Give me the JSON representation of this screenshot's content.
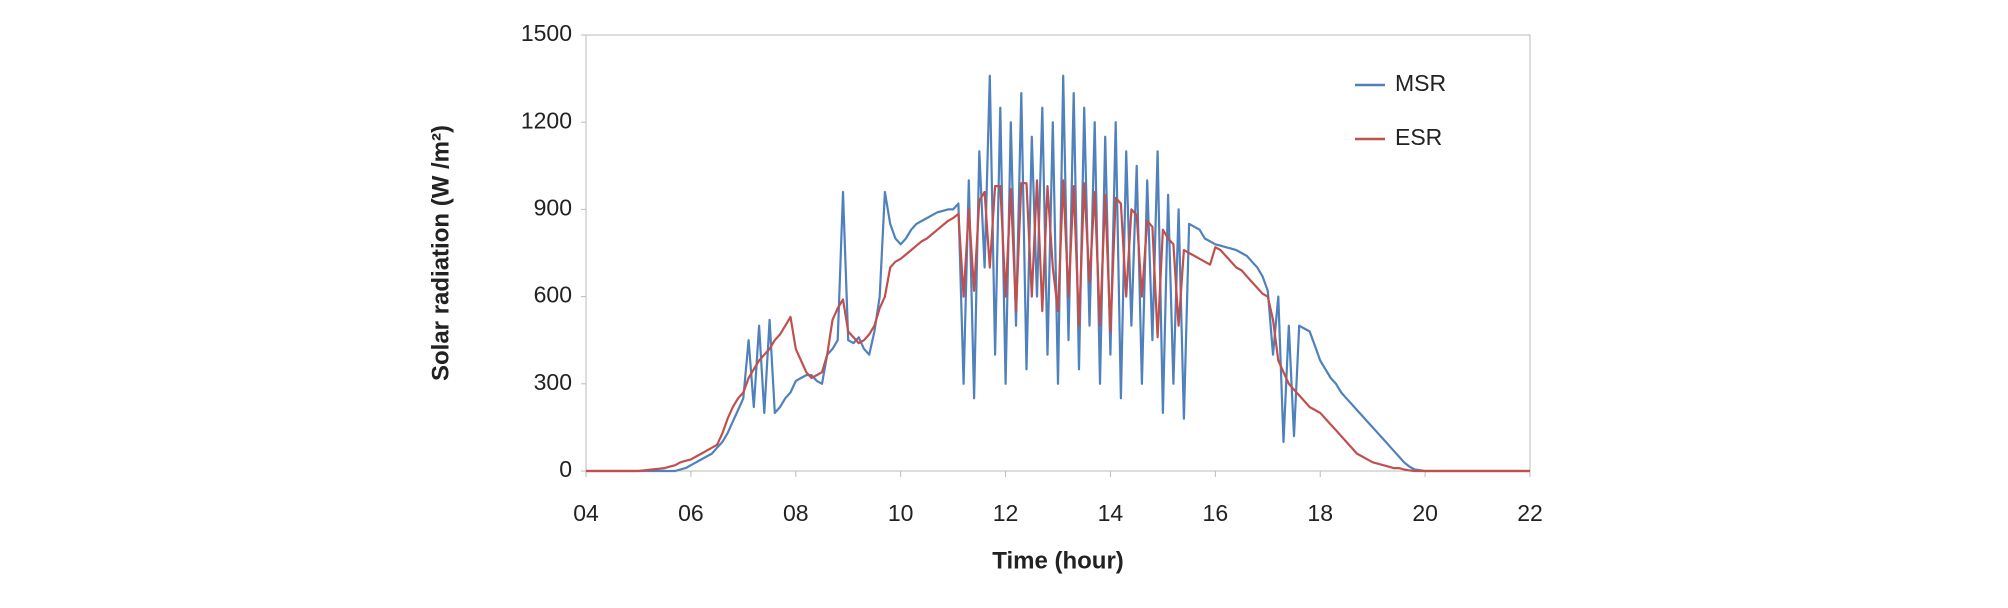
{
  "chart_data": {
    "type": "line",
    "xlabel": "Time (hour)",
    "ylabel": "Solar radiation (W /m²)",
    "x": [
      4,
      5,
      5.5,
      5.6,
      5.7,
      5.8,
      5.9,
      6.0,
      6.1,
      6.2,
      6.3,
      6.4,
      6.5,
      6.6,
      6.7,
      6.8,
      6.9,
      7.0,
      7.1,
      7.2,
      7.3,
      7.4,
      7.5,
      7.6,
      7.7,
      7.8,
      7.9,
      8.0,
      8.1,
      8.2,
      8.3,
      8.4,
      8.5,
      8.6,
      8.7,
      8.8,
      8.9,
      9.0,
      9.1,
      9.2,
      9.3,
      9.4,
      9.5,
      9.6,
      9.7,
      9.8,
      9.9,
      10.0,
      10.1,
      10.2,
      10.3,
      10.4,
      10.5,
      10.6,
      10.7,
      10.8,
      10.9,
      11.0,
      11.1,
      11.2,
      11.3,
      11.4,
      11.5,
      11.6,
      11.7,
      11.8,
      11.9,
      12.0,
      12.1,
      12.2,
      12.3,
      12.4,
      12.5,
      12.6,
      12.7,
      12.8,
      12.9,
      13.0,
      13.1,
      13.2,
      13.3,
      13.4,
      13.5,
      13.6,
      13.7,
      13.8,
      13.9,
      14.0,
      14.1,
      14.2,
      14.3,
      14.4,
      14.5,
      14.6,
      14.7,
      14.8,
      14.9,
      15.0,
      15.1,
      15.2,
      15.3,
      15.4,
      15.5,
      15.6,
      15.7,
      15.8,
      15.9,
      16.0,
      16.1,
      16.2,
      16.3,
      16.4,
      16.5,
      16.6,
      16.7,
      16.8,
      16.9,
      17.0,
      17.1,
      17.2,
      17.3,
      17.4,
      17.5,
      17.6,
      17.7,
      17.8,
      17.9,
      18.0,
      18.1,
      18.2,
      18.3,
      18.4,
      18.5,
      18.6,
      18.7,
      18.8,
      18.9,
      19.0,
      19.1,
      19.2,
      19.3,
      19.4,
      19.5,
      19.6,
      19.7,
      19.8,
      20,
      22
    ],
    "series": [
      {
        "name": "MSR",
        "color": "#4f81bd",
        "values": [
          0,
          0,
          0,
          0,
          0,
          5,
          10,
          20,
          30,
          40,
          50,
          60,
          80,
          100,
          130,
          170,
          210,
          250,
          450,
          220,
          500,
          200,
          520,
          200,
          220,
          250,
          270,
          310,
          320,
          330,
          330,
          310,
          300,
          400,
          420,
          450,
          960,
          450,
          440,
          460,
          420,
          400,
          480,
          600,
          960,
          850,
          800,
          780,
          800,
          830,
          850,
          860,
          870,
          880,
          890,
          895,
          900,
          900,
          920,
          300,
          1000,
          250,
          1100,
          700,
          1360,
          400,
          1250,
          300,
          1200,
          500,
          1300,
          350,
          1150,
          600,
          1250,
          400,
          1200,
          300,
          1360,
          450,
          1300,
          350,
          1250,
          500,
          1200,
          300,
          1150,
          400,
          1200,
          250,
          1100,
          500,
          1050,
          300,
          1000,
          450,
          1100,
          200,
          950,
          300,
          900,
          180,
          850,
          840,
          830,
          800,
          790,
          780,
          775,
          770,
          765,
          760,
          750,
          740,
          720,
          700,
          670,
          620,
          400,
          600,
          100,
          500,
          120,
          500,
          490,
          480,
          430,
          380,
          350,
          320,
          300,
          270,
          250,
          230,
          210,
          190,
          170,
          150,
          130,
          110,
          90,
          70,
          50,
          30,
          15,
          5,
          0,
          0
        ]
      },
      {
        "name": "ESR",
        "color": "#c0504d",
        "values": [
          0,
          0,
          10,
          15,
          20,
          30,
          35,
          40,
          50,
          60,
          70,
          80,
          90,
          130,
          180,
          220,
          250,
          270,
          320,
          350,
          380,
          400,
          420,
          450,
          470,
          500,
          530,
          420,
          380,
          340,
          320,
          330,
          340,
          400,
          520,
          560,
          590,
          480,
          460,
          440,
          450,
          470,
          500,
          560,
          600,
          700,
          720,
          730,
          745,
          760,
          775,
          790,
          800,
          815,
          830,
          845,
          860,
          870,
          885,
          600,
          900,
          620,
          930,
          960,
          700,
          980,
          980,
          600,
          970,
          550,
          990,
          990,
          600,
          1000,
          550,
          980,
          700,
          550,
          1000,
          600,
          980,
          500,
          990,
          650,
          960,
          500,
          950,
          480,
          940,
          920,
          600,
          900,
          880,
          600,
          860,
          840,
          460,
          830,
          800,
          780,
          500,
          760,
          750,
          740,
          730,
          720,
          710,
          770,
          760,
          740,
          720,
          700,
          690,
          670,
          650,
          630,
          610,
          600,
          520,
          380,
          340,
          300,
          280,
          260,
          240,
          220,
          210,
          200,
          180,
          160,
          140,
          120,
          100,
          80,
          60,
          50,
          40,
          30,
          25,
          20,
          15,
          10,
          10,
          5,
          2,
          0,
          0,
          0
        ]
      }
    ],
    "xlim": [
      4,
      22
    ],
    "xticks": [
      {
        "value": 4,
        "label": "04"
      },
      {
        "value": 6,
        "label": "06"
      },
      {
        "value": 8,
        "label": "08"
      },
      10,
      12,
      14,
      16,
      18,
      20,
      22
    ],
    "ylim": [
      0,
      1500
    ],
    "yticks": [
      0,
      300,
      600,
      900,
      1200,
      1500
    ],
    "legend": "upper right"
  }
}
